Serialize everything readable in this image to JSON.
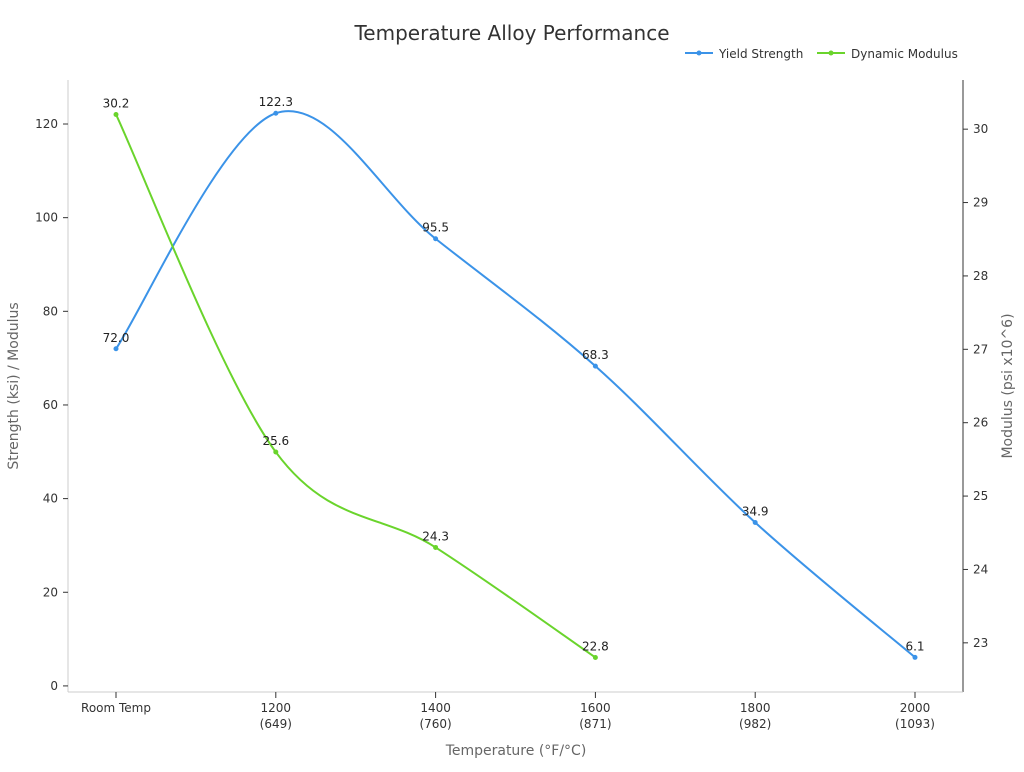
{
  "chart_data": {
    "type": "line",
    "title": "Temperature Alloy Performance",
    "xlabel": "Temperature (°F/°C)",
    "ylabel": "Strength (ksi) / Modulus",
    "y2label": "Modulus (psi x10^6)",
    "categories": [
      [
        "Room Temp",
        ""
      ],
      [
        "1200",
        "(649)"
      ],
      [
        "1400",
        "(760)"
      ],
      [
        "1600",
        "(871)"
      ],
      [
        "1800",
        "(982)"
      ],
      [
        "2000",
        "(1093)"
      ]
    ],
    "yticks": [
      0,
      20,
      40,
      60,
      80,
      100,
      120
    ],
    "y2ticks": [
      23,
      24,
      25,
      26,
      27,
      28,
      29,
      30
    ],
    "ylim": [
      -1.3,
      129.4
    ],
    "y2lim": [
      22.33,
      30.67
    ],
    "grid": false,
    "legend": "top-right",
    "series": [
      {
        "name": "Yield Strength",
        "axis": "left",
        "color": "#3b93e8",
        "values": [
          72.0,
          122.3,
          95.5,
          68.3,
          34.9,
          6.1
        ],
        "labels": [
          "72.0",
          "122.3",
          "95.5",
          "68.3",
          "34.9",
          "6.1"
        ]
      },
      {
        "name": "Dynamic Modulus",
        "axis": "right",
        "color": "#6ad42c",
        "values": [
          30.2,
          25.6,
          24.3,
          22.8,
          null,
          null
        ],
        "labels": [
          "30.2",
          "25.6",
          "24.3",
          "22.8",
          null,
          null
        ]
      }
    ]
  }
}
